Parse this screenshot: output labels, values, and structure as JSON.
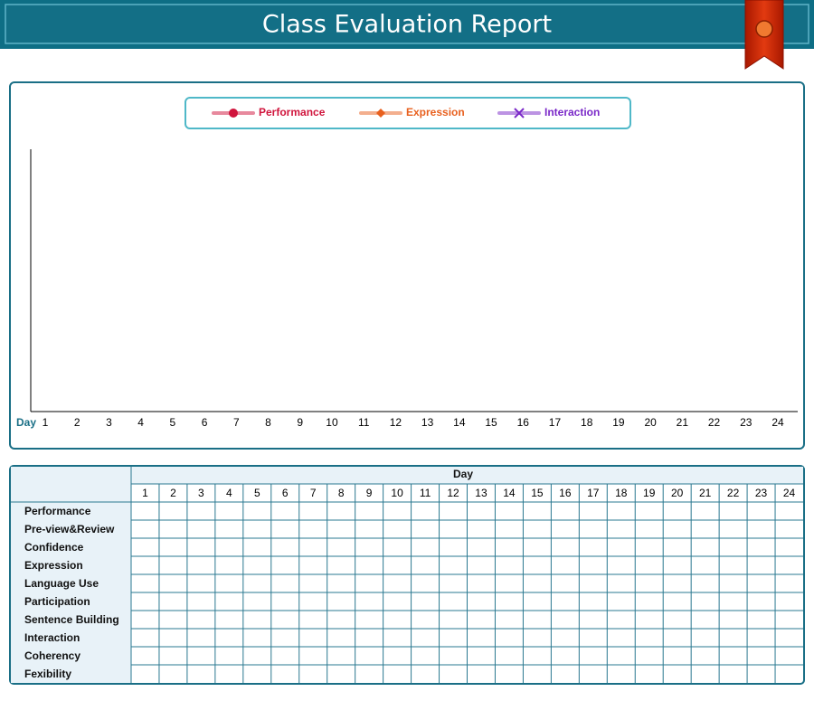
{
  "header": {
    "title": "Class Evaluation Report"
  },
  "chart_data": {
    "type": "line",
    "xlabel": "Day",
    "categories": [
      1,
      2,
      3,
      4,
      5,
      6,
      7,
      8,
      9,
      10,
      11,
      12,
      13,
      14,
      15,
      16,
      17,
      18,
      19,
      20,
      21,
      22,
      23,
      24
    ],
    "series": [
      {
        "name": "Performance",
        "color": "#d0143c",
        "marker": "circle",
        "values": [
          null,
          null,
          null,
          null,
          null,
          null,
          null,
          null,
          null,
          null,
          null,
          null,
          null,
          null,
          null,
          null,
          null,
          null,
          null,
          null,
          null,
          null,
          null,
          null
        ]
      },
      {
        "name": "Expression",
        "color": "#e8601e",
        "marker": "diamond",
        "values": [
          null,
          null,
          null,
          null,
          null,
          null,
          null,
          null,
          null,
          null,
          null,
          null,
          null,
          null,
          null,
          null,
          null,
          null,
          null,
          null,
          null,
          null,
          null,
          null
        ]
      },
      {
        "name": "Interaction",
        "color": "#7a28c8",
        "marker": "cross",
        "values": [
          null,
          null,
          null,
          null,
          null,
          null,
          null,
          null,
          null,
          null,
          null,
          null,
          null,
          null,
          null,
          null,
          null,
          null,
          null,
          null,
          null,
          null,
          null,
          null
        ]
      }
    ]
  },
  "table": {
    "header": "Day",
    "columns": [
      1,
      2,
      3,
      4,
      5,
      6,
      7,
      8,
      9,
      10,
      11,
      12,
      13,
      14,
      15,
      16,
      17,
      18,
      19,
      20,
      21,
      22,
      23,
      24
    ],
    "rows": [
      "Performance",
      "Pre-view&Review",
      "Confidence",
      "Expression",
      "Language Use",
      "Participation",
      "Sentence Building",
      "Interaction",
      "Coherency",
      "Fexibility"
    ]
  }
}
